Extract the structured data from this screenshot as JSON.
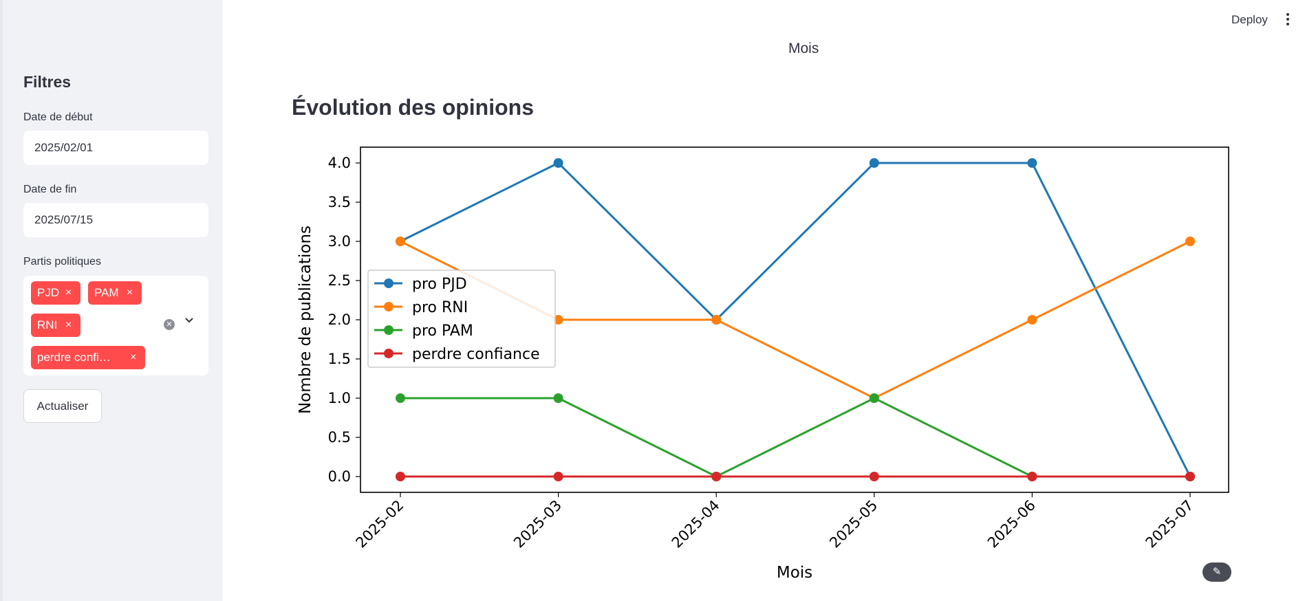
{
  "header": {
    "deploy_label": "Deploy",
    "menu_icon": "more-vertical-icon"
  },
  "main": {
    "top_label": "Mois",
    "title": "Évolution des opinions",
    "fab_icon": "magic-wand-icon"
  },
  "sidebar": {
    "title": "Filtres",
    "start_date": {
      "label": "Date de début",
      "value": "2025/02/01"
    },
    "end_date": {
      "label": "Date de fin",
      "value": "2025/07/15"
    },
    "parties": {
      "label": "Partis politiques",
      "tags": [
        "PJD",
        "PAM",
        "RNI",
        "perdre confi…"
      ],
      "clear_icon": "clear-icon",
      "dropdown_icon": "chevron-down-icon"
    },
    "refresh_label": "Actualiser"
  },
  "colors": {
    "accent": "#ff4b4b",
    "sidebar_bg": "#f0f2f6",
    "text": "#31333f"
  },
  "chart_data": {
    "type": "line",
    "title": "",
    "xlabel": "Mois",
    "ylabel": "Nombre de publications",
    "categories": [
      "2025-02",
      "2025-03",
      "2025-04",
      "2025-05",
      "2025-06",
      "2025-07"
    ],
    "ylim": [
      0,
      4
    ],
    "yticks": [
      "0.0",
      "0.5",
      "1.0",
      "1.5",
      "2.0",
      "2.5",
      "3.0",
      "3.5",
      "4.0"
    ],
    "legend_position": "center-left",
    "grid": false,
    "series": [
      {
        "name": "pro PJD",
        "color": "#1f77b4",
        "values": [
          3,
          4,
          2,
          4,
          4,
          0
        ]
      },
      {
        "name": "pro RNI",
        "color": "#ff7f0e",
        "values": [
          3,
          2,
          2,
          1,
          2,
          3
        ]
      },
      {
        "name": "pro PAM",
        "color": "#2ca02c",
        "values": [
          1,
          1,
          0,
          1,
          0,
          0
        ]
      },
      {
        "name": "perdre confiance",
        "color": "#d62728",
        "values": [
          0,
          0,
          0,
          0,
          0,
          0
        ]
      }
    ]
  }
}
